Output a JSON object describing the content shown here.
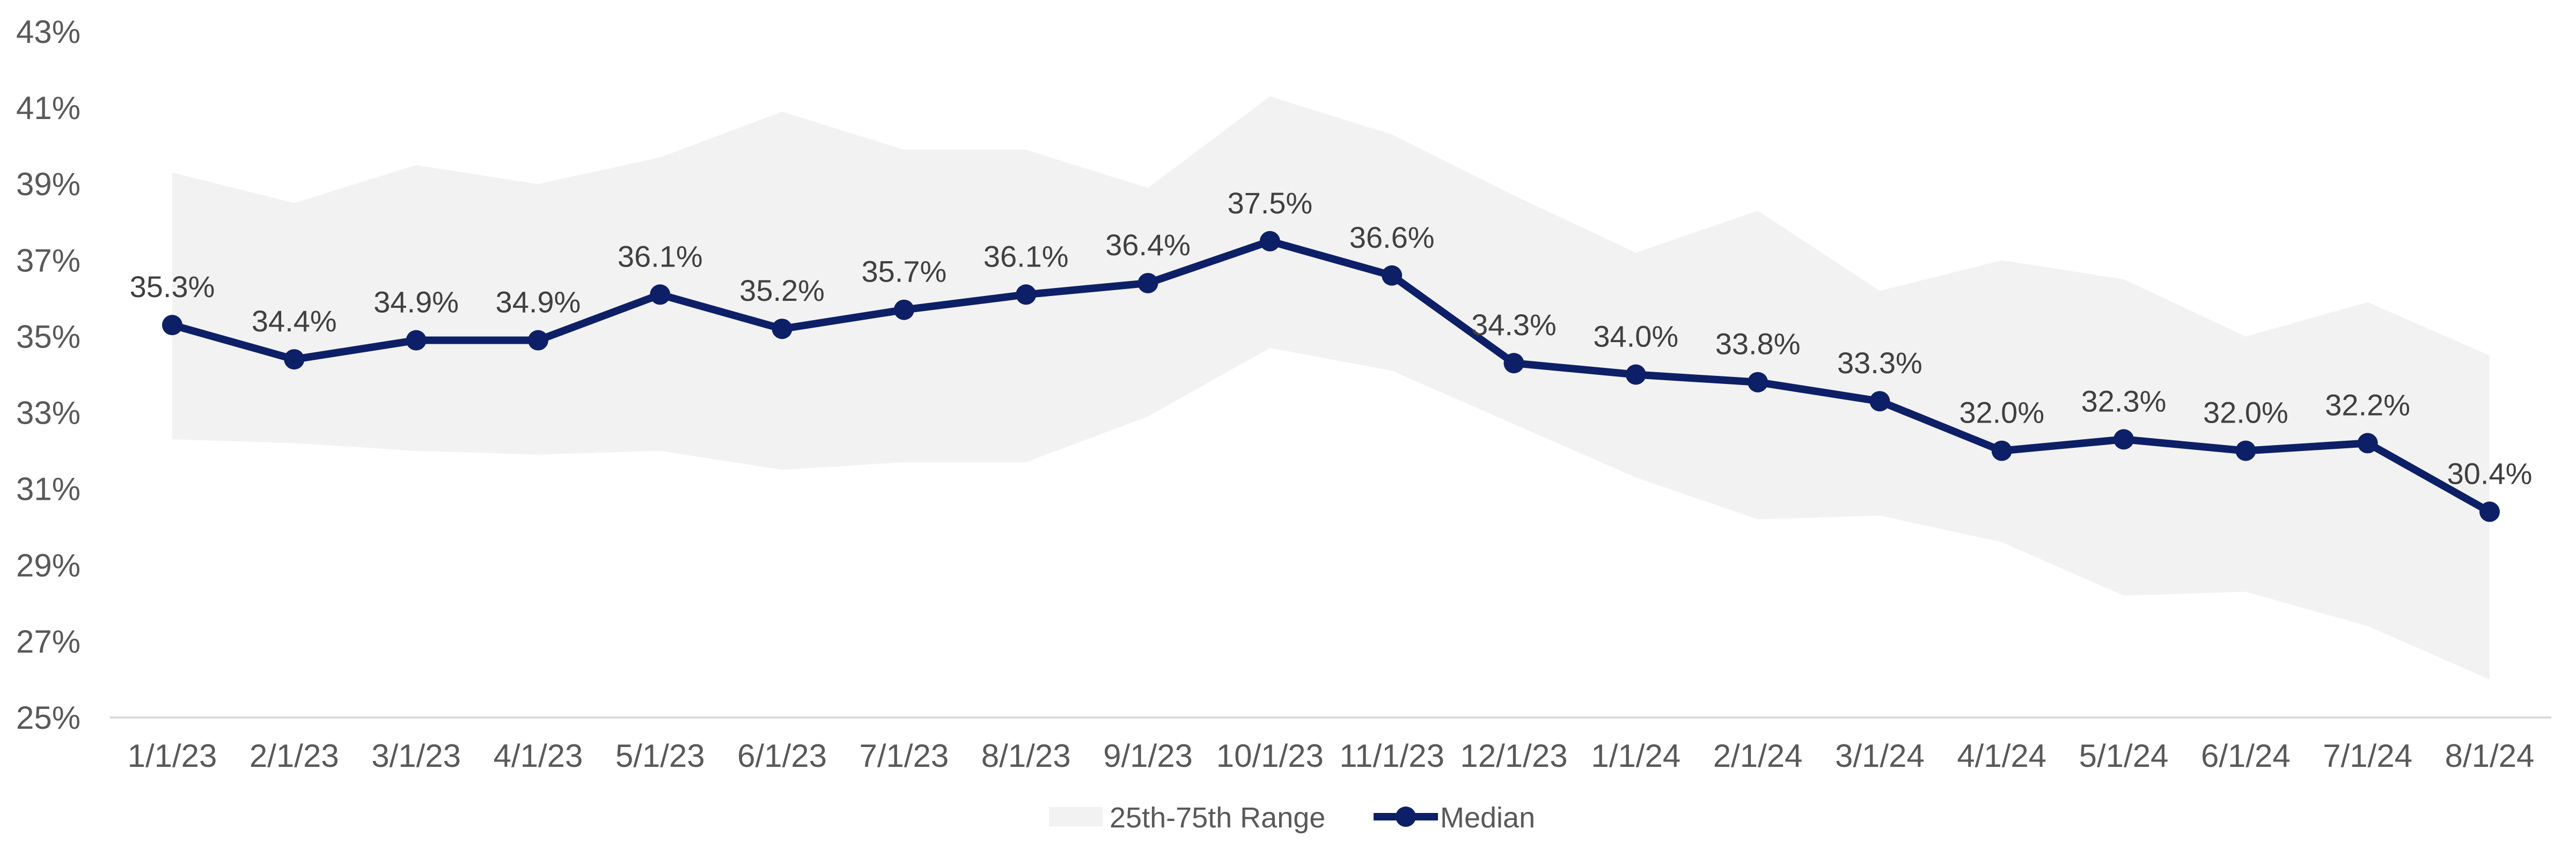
{
  "chart_data": {
    "type": "line",
    "title": "",
    "xlabel": "",
    "ylabel": "",
    "categories": [
      "1/1/23",
      "2/1/23",
      "3/1/23",
      "4/1/23",
      "5/1/23",
      "6/1/23",
      "7/1/23",
      "8/1/23",
      "9/1/23",
      "10/1/23",
      "11/1/23",
      "12/1/23",
      "1/1/24",
      "2/1/24",
      "3/1/24",
      "4/1/24",
      "5/1/24",
      "6/1/24",
      "7/1/24",
      "8/1/24"
    ],
    "y_ticks": [
      "25%",
      "27%",
      "29%",
      "31%",
      "33%",
      "35%",
      "37%",
      "39%",
      "41%",
      "43%"
    ],
    "ylim": [
      25,
      43
    ],
    "series": [
      {
        "name": "Median",
        "type": "line-marker",
        "color": "#0D1F66",
        "values": [
          35.3,
          34.4,
          34.9,
          34.9,
          36.1,
          35.2,
          35.7,
          36.1,
          36.4,
          37.5,
          36.6,
          34.3,
          34.0,
          33.8,
          33.3,
          32.0,
          32.3,
          32.0,
          32.2,
          30.4
        ],
        "labels": [
          "35.3%",
          "34.4%",
          "34.9%",
          "34.9%",
          "36.1%",
          "35.2%",
          "35.7%",
          "36.1%",
          "36.4%",
          "37.5%",
          "36.6%",
          "34.3%",
          "34.0%",
          "33.8%",
          "33.3%",
          "32.0%",
          "32.3%",
          "32.0%",
          "32.2%",
          "30.4%"
        ]
      },
      {
        "name": "25th-75th Range",
        "type": "band",
        "color": "#F2F2F2",
        "upper": [
          39.3,
          38.5,
          39.5,
          39.0,
          39.7,
          40.9,
          39.9,
          39.9,
          38.9,
          41.3,
          40.3,
          38.7,
          37.2,
          38.3,
          36.2,
          37.0,
          36.5,
          35.0,
          35.9,
          34.5
        ],
        "lower": [
          32.3,
          32.2,
          32.0,
          31.9,
          32.0,
          31.5,
          31.7,
          31.7,
          32.9,
          34.7,
          34.1,
          32.7,
          31.3,
          30.2,
          30.3,
          29.6,
          28.2,
          28.3,
          27.4,
          26.0
        ]
      }
    ],
    "grid": false,
    "legend": {
      "position": "bottom-center",
      "items": [
        {
          "label": "25th-75th Range",
          "kind": "band"
        },
        {
          "label": "Median",
          "kind": "line-marker"
        }
      ]
    },
    "colors": {
      "axis": "#D9D9D9",
      "tick_text": "#595959",
      "label_text": "#404040"
    }
  }
}
